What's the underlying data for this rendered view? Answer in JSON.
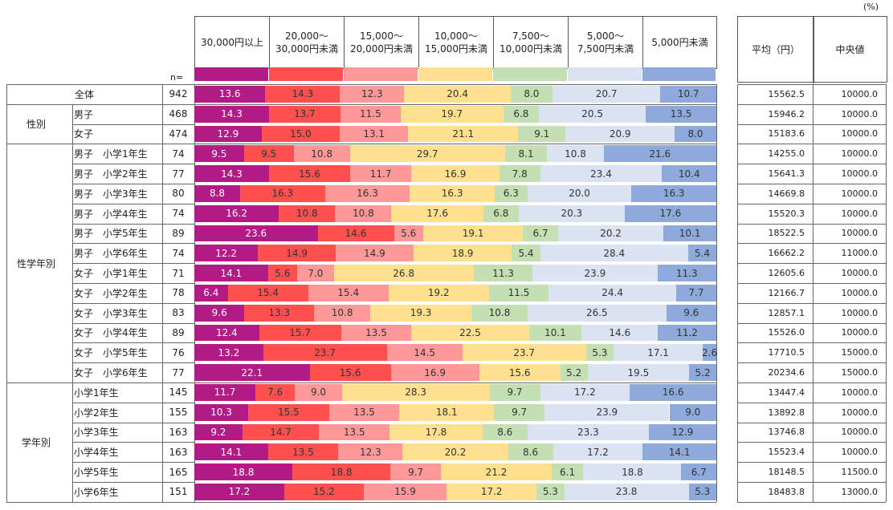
{
  "unit_label": "(%)",
  "n_caption": "n=",
  "categories": [
    "30,000円以上",
    "20,000～\n30,000円未満",
    "15,000～\n20,000円未満",
    "10,000～\n15,000円未満",
    "7,500～\n10,000円未満",
    "5,000～\n7,500円未満",
    "5,000円未満"
  ],
  "colors": [
    "#b21a86",
    "#ff5050",
    "#ff9999",
    "#ffe08f",
    "#c4e0b3",
    "#dbe3f3",
    "#8eaadb"
  ],
  "stat_headers": {
    "mean": "平均（円）",
    "median": "中央値"
  },
  "groups": [
    {
      "label": "",
      "start": 0,
      "end": 0
    },
    {
      "label": "性別",
      "start": 1,
      "end": 2
    },
    {
      "label": "性学年別",
      "start": 3,
      "end": 14
    },
    {
      "label": "学年別",
      "start": 15,
      "end": 20
    }
  ],
  "chart_data": {
    "type": "bar",
    "stacked": true,
    "orientation": "horizontal",
    "unit": "(%)",
    "series": [
      {
        "name": "30,000円以上",
        "color": "#b21a86"
      },
      {
        "name": "20,000～30,000円未満",
        "color": "#ff5050"
      },
      {
        "name": "15,000～20,000円未満",
        "color": "#ff9999"
      },
      {
        "name": "10,000～15,000円未満",
        "color": "#ffe08f"
      },
      {
        "name": "7,500～10,000円未満",
        "color": "#c4e0b3"
      },
      {
        "name": "5,000～7,500円未満",
        "color": "#dbe3f3"
      },
      {
        "name": "5,000円未満",
        "color": "#8eaadb"
      }
    ],
    "rows": [
      {
        "label": "全体",
        "n": "942",
        "values": [
          13.6,
          14.3,
          12.3,
          20.4,
          8.0,
          20.7,
          10.7
        ],
        "mean": "15562.5",
        "median": "10000.0"
      },
      {
        "label": "男子",
        "n": "468",
        "values": [
          14.3,
          13.7,
          11.5,
          19.7,
          6.8,
          20.5,
          13.5
        ],
        "mean": "15946.2",
        "median": "10000.0"
      },
      {
        "label": "女子",
        "n": "474",
        "values": [
          12.9,
          15.0,
          13.1,
          21.1,
          9.1,
          20.9,
          8.0
        ],
        "mean": "15183.6",
        "median": "10000.0"
      },
      {
        "label": "男子　小学1年生",
        "n": "74",
        "values": [
          9.5,
          9.5,
          10.8,
          29.7,
          8.1,
          10.8,
          21.6
        ],
        "mean": "14255.0",
        "median": "10000.0"
      },
      {
        "label": "男子　小学2年生",
        "n": "77",
        "values": [
          14.3,
          15.6,
          11.7,
          16.9,
          7.8,
          23.4,
          10.4
        ],
        "mean": "15641.3",
        "median": "10000.0"
      },
      {
        "label": "男子　小学3年生",
        "n": "80",
        "values": [
          8.8,
          16.3,
          16.3,
          16.3,
          6.3,
          20.0,
          16.3
        ],
        "mean": "14669.8",
        "median": "10000.0"
      },
      {
        "label": "男子　小学4年生",
        "n": "74",
        "values": [
          16.2,
          10.8,
          10.8,
          17.6,
          6.8,
          20.3,
          17.6
        ],
        "mean": "15520.3",
        "median": "10000.0"
      },
      {
        "label": "男子　小学5年生",
        "n": "89",
        "values": [
          23.6,
          14.6,
          5.6,
          19.1,
          6.7,
          20.2,
          10.1
        ],
        "mean": "18522.5",
        "median": "10000.0"
      },
      {
        "label": "男子　小学6年生",
        "n": "74",
        "values": [
          12.2,
          14.9,
          14.9,
          18.9,
          5.4,
          28.4,
          5.4
        ],
        "mean": "16662.2",
        "median": "11000.0"
      },
      {
        "label": "女子　小学1年生",
        "n": "71",
        "values": [
          14.1,
          5.6,
          7.0,
          26.8,
          11.3,
          23.9,
          11.3
        ],
        "mean": "12605.6",
        "median": "10000.0"
      },
      {
        "label": "女子　小学2年生",
        "n": "78",
        "values": [
          6.4,
          15.4,
          15.4,
          19.2,
          11.5,
          24.4,
          7.7
        ],
        "mean": "12166.7",
        "median": "10000.0"
      },
      {
        "label": "女子　小学3年生",
        "n": "83",
        "values": [
          9.6,
          13.3,
          10.8,
          19.3,
          10.8,
          26.5,
          9.6
        ],
        "mean": "12857.1",
        "median": "10000.0"
      },
      {
        "label": "女子　小学4年生",
        "n": "89",
        "values": [
          12.4,
          15.7,
          13.5,
          22.5,
          10.1,
          14.6,
          11.2
        ],
        "mean": "15526.0",
        "median": "10000.0"
      },
      {
        "label": "女子　小学5年生",
        "n": "76",
        "values": [
          13.2,
          23.7,
          14.5,
          23.7,
          5.3,
          17.1,
          2.6
        ],
        "mean": "17710.5",
        "median": "15000.0"
      },
      {
        "label": "女子　小学6年生",
        "n": "77",
        "values": [
          22.1,
          15.6,
          16.9,
          15.6,
          5.2,
          19.5,
          5.2
        ],
        "mean": "20234.6",
        "median": "15000.0"
      },
      {
        "label": "小学1年生",
        "n": "145",
        "values": [
          11.7,
          7.6,
          9.0,
          28.3,
          9.7,
          17.2,
          16.6
        ],
        "mean": "13447.4",
        "median": "10000.0"
      },
      {
        "label": "小学2年生",
        "n": "155",
        "values": [
          10.3,
          15.5,
          13.5,
          18.1,
          9.7,
          23.9,
          9.0
        ],
        "mean": "13892.8",
        "median": "10000.0"
      },
      {
        "label": "小学3年生",
        "n": "163",
        "values": [
          9.2,
          14.7,
          13.5,
          17.8,
          8.6,
          23.3,
          12.9
        ],
        "mean": "13746.8",
        "median": "10000.0"
      },
      {
        "label": "小学4年生",
        "n": "163",
        "values": [
          14.1,
          13.5,
          12.3,
          20.2,
          8.6,
          17.2,
          14.1
        ],
        "mean": "15523.4",
        "median": "10000.0"
      },
      {
        "label": "小学5年生",
        "n": "165",
        "values": [
          18.8,
          18.8,
          9.7,
          21.2,
          6.1,
          18.8,
          6.7
        ],
        "mean": "18148.5",
        "median": "11500.0"
      },
      {
        "label": "小学6年生",
        "n": "151",
        "values": [
          17.2,
          15.2,
          15.9,
          17.2,
          5.3,
          23.8,
          5.3
        ],
        "mean": "18483.8",
        "median": "13000.0"
      }
    ]
  }
}
